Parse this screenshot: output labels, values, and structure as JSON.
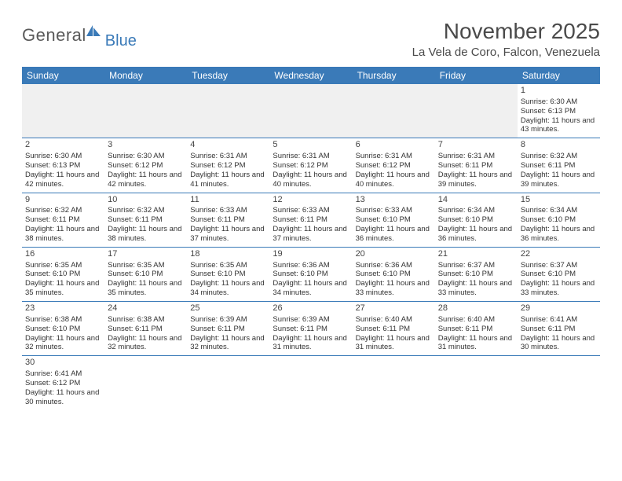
{
  "logo": {
    "text1": "General",
    "text2": "Blue"
  },
  "title": "November 2025",
  "location": "La Vela de Coro, Falcon, Venezuela",
  "colors": {
    "header_bg": "#3a7ab8",
    "header_text": "#ffffff",
    "border": "#3a7ab8",
    "empty_bg": "#f0f0f0",
    "body_text": "#333333",
    "title_text": "#4a4a4a"
  },
  "day_names": [
    "Sunday",
    "Monday",
    "Tuesday",
    "Wednesday",
    "Thursday",
    "Friday",
    "Saturday"
  ],
  "grid": {
    "columns": 7,
    "rows": 6
  },
  "weeks": [
    [
      {
        "empty": true
      },
      {
        "empty": true
      },
      {
        "empty": true
      },
      {
        "empty": true
      },
      {
        "empty": true
      },
      {
        "empty": true
      },
      {
        "day": "1",
        "sunrise": "Sunrise: 6:30 AM",
        "sunset": "Sunset: 6:13 PM",
        "daylight": "Daylight: 11 hours and 43 minutes."
      }
    ],
    [
      {
        "day": "2",
        "sunrise": "Sunrise: 6:30 AM",
        "sunset": "Sunset: 6:13 PM",
        "daylight": "Daylight: 11 hours and 42 minutes."
      },
      {
        "day": "3",
        "sunrise": "Sunrise: 6:30 AM",
        "sunset": "Sunset: 6:12 PM",
        "daylight": "Daylight: 11 hours and 42 minutes."
      },
      {
        "day": "4",
        "sunrise": "Sunrise: 6:31 AM",
        "sunset": "Sunset: 6:12 PM",
        "daylight": "Daylight: 11 hours and 41 minutes."
      },
      {
        "day": "5",
        "sunrise": "Sunrise: 6:31 AM",
        "sunset": "Sunset: 6:12 PM",
        "daylight": "Daylight: 11 hours and 40 minutes."
      },
      {
        "day": "6",
        "sunrise": "Sunrise: 6:31 AM",
        "sunset": "Sunset: 6:12 PM",
        "daylight": "Daylight: 11 hours and 40 minutes."
      },
      {
        "day": "7",
        "sunrise": "Sunrise: 6:31 AM",
        "sunset": "Sunset: 6:11 PM",
        "daylight": "Daylight: 11 hours and 39 minutes."
      },
      {
        "day": "8",
        "sunrise": "Sunrise: 6:32 AM",
        "sunset": "Sunset: 6:11 PM",
        "daylight": "Daylight: 11 hours and 39 minutes."
      }
    ],
    [
      {
        "day": "9",
        "sunrise": "Sunrise: 6:32 AM",
        "sunset": "Sunset: 6:11 PM",
        "daylight": "Daylight: 11 hours and 38 minutes."
      },
      {
        "day": "10",
        "sunrise": "Sunrise: 6:32 AM",
        "sunset": "Sunset: 6:11 PM",
        "daylight": "Daylight: 11 hours and 38 minutes."
      },
      {
        "day": "11",
        "sunrise": "Sunrise: 6:33 AM",
        "sunset": "Sunset: 6:11 PM",
        "daylight": "Daylight: 11 hours and 37 minutes."
      },
      {
        "day": "12",
        "sunrise": "Sunrise: 6:33 AM",
        "sunset": "Sunset: 6:11 PM",
        "daylight": "Daylight: 11 hours and 37 minutes."
      },
      {
        "day": "13",
        "sunrise": "Sunrise: 6:33 AM",
        "sunset": "Sunset: 6:10 PM",
        "daylight": "Daylight: 11 hours and 36 minutes."
      },
      {
        "day": "14",
        "sunrise": "Sunrise: 6:34 AM",
        "sunset": "Sunset: 6:10 PM",
        "daylight": "Daylight: 11 hours and 36 minutes."
      },
      {
        "day": "15",
        "sunrise": "Sunrise: 6:34 AM",
        "sunset": "Sunset: 6:10 PM",
        "daylight": "Daylight: 11 hours and 36 minutes."
      }
    ],
    [
      {
        "day": "16",
        "sunrise": "Sunrise: 6:35 AM",
        "sunset": "Sunset: 6:10 PM",
        "daylight": "Daylight: 11 hours and 35 minutes."
      },
      {
        "day": "17",
        "sunrise": "Sunrise: 6:35 AM",
        "sunset": "Sunset: 6:10 PM",
        "daylight": "Daylight: 11 hours and 35 minutes."
      },
      {
        "day": "18",
        "sunrise": "Sunrise: 6:35 AM",
        "sunset": "Sunset: 6:10 PM",
        "daylight": "Daylight: 11 hours and 34 minutes."
      },
      {
        "day": "19",
        "sunrise": "Sunrise: 6:36 AM",
        "sunset": "Sunset: 6:10 PM",
        "daylight": "Daylight: 11 hours and 34 minutes."
      },
      {
        "day": "20",
        "sunrise": "Sunrise: 6:36 AM",
        "sunset": "Sunset: 6:10 PM",
        "daylight": "Daylight: 11 hours and 33 minutes."
      },
      {
        "day": "21",
        "sunrise": "Sunrise: 6:37 AM",
        "sunset": "Sunset: 6:10 PM",
        "daylight": "Daylight: 11 hours and 33 minutes."
      },
      {
        "day": "22",
        "sunrise": "Sunrise: 6:37 AM",
        "sunset": "Sunset: 6:10 PM",
        "daylight": "Daylight: 11 hours and 33 minutes."
      }
    ],
    [
      {
        "day": "23",
        "sunrise": "Sunrise: 6:38 AM",
        "sunset": "Sunset: 6:10 PM",
        "daylight": "Daylight: 11 hours and 32 minutes."
      },
      {
        "day": "24",
        "sunrise": "Sunrise: 6:38 AM",
        "sunset": "Sunset: 6:11 PM",
        "daylight": "Daylight: 11 hours and 32 minutes."
      },
      {
        "day": "25",
        "sunrise": "Sunrise: 6:39 AM",
        "sunset": "Sunset: 6:11 PM",
        "daylight": "Daylight: 11 hours and 32 minutes."
      },
      {
        "day": "26",
        "sunrise": "Sunrise: 6:39 AM",
        "sunset": "Sunset: 6:11 PM",
        "daylight": "Daylight: 11 hours and 31 minutes."
      },
      {
        "day": "27",
        "sunrise": "Sunrise: 6:40 AM",
        "sunset": "Sunset: 6:11 PM",
        "daylight": "Daylight: 11 hours and 31 minutes."
      },
      {
        "day": "28",
        "sunrise": "Sunrise: 6:40 AM",
        "sunset": "Sunset: 6:11 PM",
        "daylight": "Daylight: 11 hours and 31 minutes."
      },
      {
        "day": "29",
        "sunrise": "Sunrise: 6:41 AM",
        "sunset": "Sunset: 6:11 PM",
        "daylight": "Daylight: 11 hours and 30 minutes."
      }
    ],
    [
      {
        "day": "30",
        "sunrise": "Sunrise: 6:41 AM",
        "sunset": "Sunset: 6:12 PM",
        "daylight": "Daylight: 11 hours and 30 minutes."
      },
      {
        "empty": true
      },
      {
        "empty": true
      },
      {
        "empty": true
      },
      {
        "empty": true
      },
      {
        "empty": true
      },
      {
        "empty": true
      }
    ]
  ]
}
